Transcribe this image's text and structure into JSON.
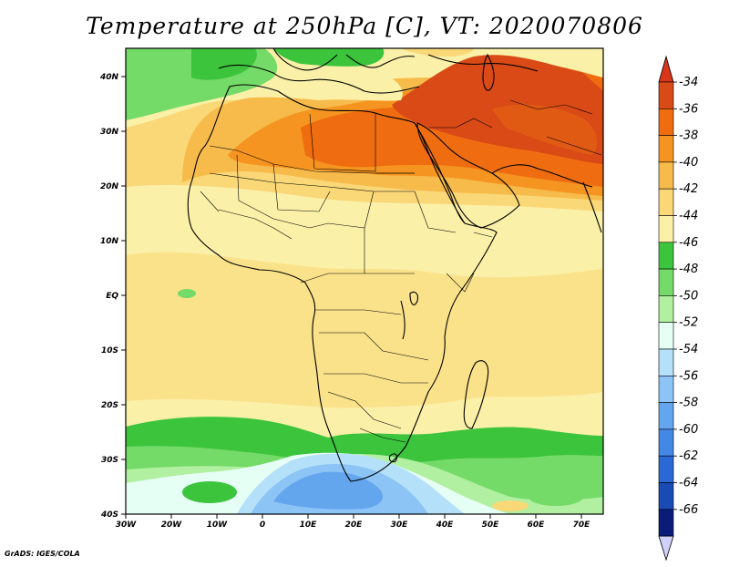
{
  "title": "Temperature at 250hPa [C], VT: 2020070806",
  "credit": "GrADS: IGES/COLA",
  "map": {
    "region": "Africa and Middle East",
    "lon_labels": [
      "30W",
      "20W",
      "10W",
      "0",
      "10E",
      "20E",
      "30E",
      "40E",
      "50E",
      "60E",
      "70E"
    ],
    "lat_labels": [
      "40N",
      "30N",
      "20N",
      "10N",
      "EQ",
      "10S",
      "20S",
      "30S",
      "40S"
    ]
  },
  "colorbar": {
    "labels": [
      "-34",
      "-36",
      "-38",
      "-40",
      "-42",
      "-44",
      "-46",
      "-48",
      "-50",
      "-52",
      "-54",
      "-56",
      "-58",
      "-60",
      "-62",
      "-64",
      "-66"
    ],
    "colors": [
      "#d94a16",
      "#ef6c10",
      "#f59420",
      "#f7bb4c",
      "#fad878",
      "#fbf0a8",
      "#3cc43c",
      "#74da68",
      "#b0f0a0",
      "#e6fff5",
      "#b4e0fa",
      "#8cc4f5",
      "#64a6ee",
      "#4488e6",
      "#2a68d6",
      "#1a4ab4",
      "#0a1c78"
    ],
    "top_arrow_color": "#d8351a",
    "bottom_arrow_color": "#d0d0f8"
  }
}
